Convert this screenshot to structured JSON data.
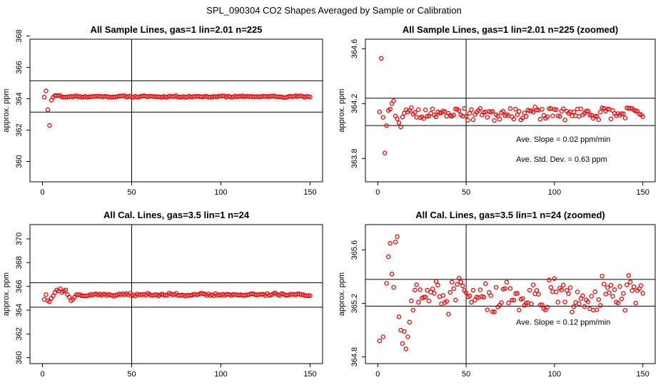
{
  "figure_title": "SPL_090304  CO2 Shapes Averaged by Sample or Calibration",
  "colors": {
    "points": "#ff0000",
    "axes": "#000000",
    "background": "#ffffff"
  },
  "chart_data": [
    {
      "type": "scatter",
      "title": "All Sample Lines, gas=1 lin=2.01 n=225",
      "xlabel": "",
      "ylabel": "approx. ppm",
      "xlim": [
        -7,
        157
      ],
      "ylim": [
        358.7,
        367.8
      ],
      "xticks": [
        0,
        50,
        100,
        150
      ],
      "yticks": [
        360,
        362,
        364,
        366,
        368
      ],
      "vline": 50,
      "hlines": [
        363.15,
        365.15
      ],
      "annotations": [],
      "profile": {
        "x_start": 1,
        "x_end": 150,
        "early": [
          [
            1,
            364.1
          ],
          [
            2,
            364.5
          ],
          [
            3,
            363.3
          ],
          [
            4,
            362.3
          ],
          [
            5,
            363.9
          ],
          [
            6,
            364.1
          ],
          [
            7,
            364.2
          ],
          [
            8,
            364.2
          ],
          [
            9,
            364.2
          ],
          [
            10,
            364.2
          ],
          [
            11,
            364.1
          ],
          [
            12,
            364.1
          ],
          [
            13,
            364.1
          ]
        ],
        "base": 364.14,
        "noise": 0.04,
        "seed": 11
      }
    },
    {
      "type": "scatter",
      "title": "All Sample Lines, gas=1 lin=2.01 n=225 (zoomed)",
      "xlabel": "",
      "ylabel": "approx. ppm",
      "xlim": [
        -7,
        157
      ],
      "ylim": [
        363.63,
        364.67
      ],
      "xticks": [
        0,
        50,
        100,
        150
      ],
      "yticks": [
        363.8,
        364.2,
        364.6
      ],
      "vline": 50,
      "hlines": [
        364.04,
        364.24
      ],
      "annotations": [
        "Ave. Slope =  0.02  ppm/min",
        "Ave. Std. Dev. =  0.63  ppm"
      ],
      "profile": {
        "x_start": 1,
        "x_end": 150,
        "early": [
          [
            1,
            364.14
          ],
          [
            2,
            364.53
          ],
          [
            3,
            364.1
          ],
          [
            4,
            363.84
          ],
          [
            5,
            364.04
          ],
          [
            6,
            364.15
          ],
          [
            7,
            364.16
          ],
          [
            8,
            364.2
          ],
          [
            9,
            364.22
          ],
          [
            10,
            364.11
          ],
          [
            11,
            364.09
          ],
          [
            12,
            364.06
          ],
          [
            13,
            364.03
          ]
        ],
        "base": 364.13,
        "noise": 0.035,
        "seed": 23
      }
    },
    {
      "type": "scatter",
      "title": "All Cal. Lines, gas=3.5 lin=1 n=24",
      "xlabel": "",
      "ylabel": "approx. ppm",
      "xlim": [
        -7,
        157
      ],
      "ylim": [
        359.5,
        371.2
      ],
      "xticks": [
        0,
        50,
        100,
        150
      ],
      "yticks": [
        360,
        362,
        364,
        366,
        368,
        370
      ],
      "vline": 50,
      "hlines": [
        364.25,
        366.3
      ],
      "annotations": [],
      "profile": {
        "x_start": 1,
        "x_end": 150,
        "early": [
          [
            1,
            364.9
          ],
          [
            2,
            365.3
          ],
          [
            3,
            364.8
          ],
          [
            4,
            364.7
          ],
          [
            5,
            365.0
          ],
          [
            6,
            365.2
          ],
          [
            7,
            365.5
          ],
          [
            8,
            365.7
          ],
          [
            9,
            365.6
          ],
          [
            10,
            365.8
          ],
          [
            11,
            365.5
          ],
          [
            12,
            365.6
          ],
          [
            13,
            365.7
          ],
          [
            14,
            365.3
          ],
          [
            15,
            365.1
          ],
          [
            16,
            364.8
          ],
          [
            17,
            364.9
          ],
          [
            18,
            365.1
          ],
          [
            19,
            365.3
          ]
        ],
        "base": 365.3,
        "noise": 0.09,
        "seed": 37
      }
    },
    {
      "type": "scatter",
      "title": "All Cal. Lines, gas=3.5 lin=1 n=24 (zoomed)",
      "xlabel": "",
      "ylabel": "approx. ppm",
      "xlim": [
        -7,
        157
      ],
      "ylim": [
        364.75,
        365.79
      ],
      "xticks": [
        0,
        50,
        100,
        150
      ],
      "yticks": [
        364.8,
        365.2,
        365.6
      ],
      "vline": 50,
      "hlines": [
        365.18,
        365.38
      ],
      "annotations": [
        "Ave. Slope =  0.12  ppm/min"
      ],
      "profile": {
        "x_start": 1,
        "x_end": 150,
        "early": [
          [
            1,
            364.92
          ],
          [
            3,
            364.95
          ],
          [
            5,
            365.35
          ],
          [
            6,
            365.55
          ],
          [
            7,
            365.65
          ],
          [
            8,
            365.42
          ],
          [
            9,
            365.32
          ],
          [
            10,
            365.66
          ],
          [
            11,
            365.7
          ],
          [
            12,
            365.1
          ],
          [
            13,
            365.0
          ],
          [
            14,
            364.9
          ],
          [
            15,
            364.99
          ],
          [
            16,
            364.86
          ],
          [
            17,
            364.95
          ],
          [
            18,
            365.06
          ],
          [
            19,
            365.22
          ],
          [
            20,
            365.15
          ],
          [
            21,
            365.3
          ],
          [
            22,
            365.34
          ]
        ],
        "base": 365.26,
        "noise": 0.1,
        "seed": 51
      }
    }
  ]
}
